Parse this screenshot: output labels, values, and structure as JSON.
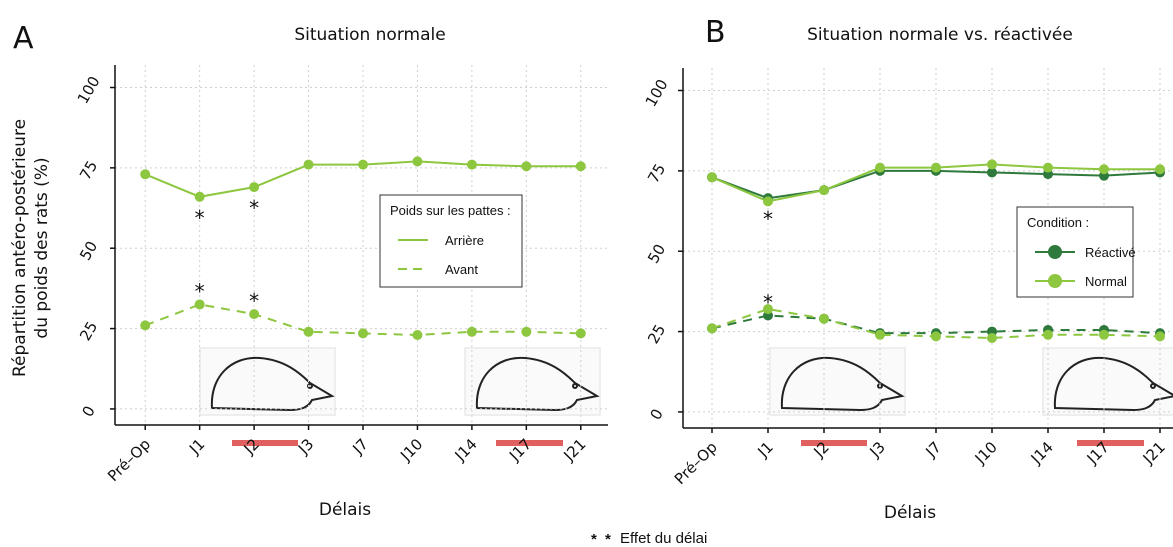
{
  "chart_data": [
    {
      "type": "line",
      "panel": "A",
      "title": "Situation normale",
      "x_label": "Délais",
      "y_label": [
        "Répartition antéro-postérieure",
        "du poids des rats (%)"
      ],
      "categories": [
        "Pré–Op",
        "J1",
        "J2",
        "J3",
        "J7",
        "J10",
        "J14",
        "J17",
        "J21"
      ],
      "ylim": [
        -5,
        107
      ],
      "yticks": [
        0,
        25,
        50,
        75,
        100
      ],
      "grid": true,
      "legend_title": "Poids sur les pattes :",
      "series": [
        {
          "name": "Arrière",
          "color": "#8dc63f",
          "dash": false,
          "values": [
            73,
            66,
            69,
            76,
            76,
            77,
            76,
            75.5,
            75.5
          ],
          "annotations": [
            null,
            "*",
            "*",
            null,
            null,
            null,
            null,
            null,
            null
          ]
        },
        {
          "name": "Avant",
          "color": "#8dc63f",
          "dash": true,
          "values": [
            26,
            32.5,
            29.5,
            24,
            23.5,
            23,
            24,
            24,
            23.5
          ],
          "annotations": [
            null,
            "*",
            "*",
            null,
            null,
            null,
            null,
            null,
            null
          ]
        }
      ]
    },
    {
      "type": "line",
      "panel": "B",
      "title": "Situation normale vs. réactivée",
      "x_label": "Délais",
      "categories": [
        "Pré–Op",
        "J1",
        "J2",
        "J3",
        "J7",
        "J10",
        "J14",
        "J17",
        "J21"
      ],
      "ylim": [
        -5,
        107
      ],
      "yticks": [
        0,
        25,
        50,
        75,
        100
      ],
      "grid": true,
      "legend_title": "Condition :",
      "series": [
        {
          "name": "Réactivé",
          "color": "#2e7a3c",
          "values": [
            73,
            66.5,
            69,
            75,
            75,
            74.5,
            74,
            73.5,
            74.5
          ],
          "values_avant": [
            26,
            30,
            29,
            24.5,
            24.5,
            25,
            25.5,
            25.5,
            24.5
          ],
          "annotations": [
            null,
            "*",
            null,
            null,
            null,
            null,
            null,
            null,
            null
          ],
          "annotations_avant": [
            null,
            "*",
            null,
            null,
            null,
            null,
            null,
            null,
            null
          ]
        },
        {
          "name": "Normal",
          "color": "#8dc63f",
          "values": [
            73,
            65.5,
            69,
            76,
            76,
            77,
            76,
            75.5,
            75.5
          ],
          "values_avant": [
            26,
            32,
            29,
            24,
            23.5,
            23,
            24,
            24,
            23.5
          ]
        }
      ]
    }
  ],
  "footnote": {
    "marks": [
      "*",
      "*"
    ],
    "colors": [
      "#8dc63f",
      "#2e7a3c"
    ],
    "text": "Effet du délai"
  }
}
